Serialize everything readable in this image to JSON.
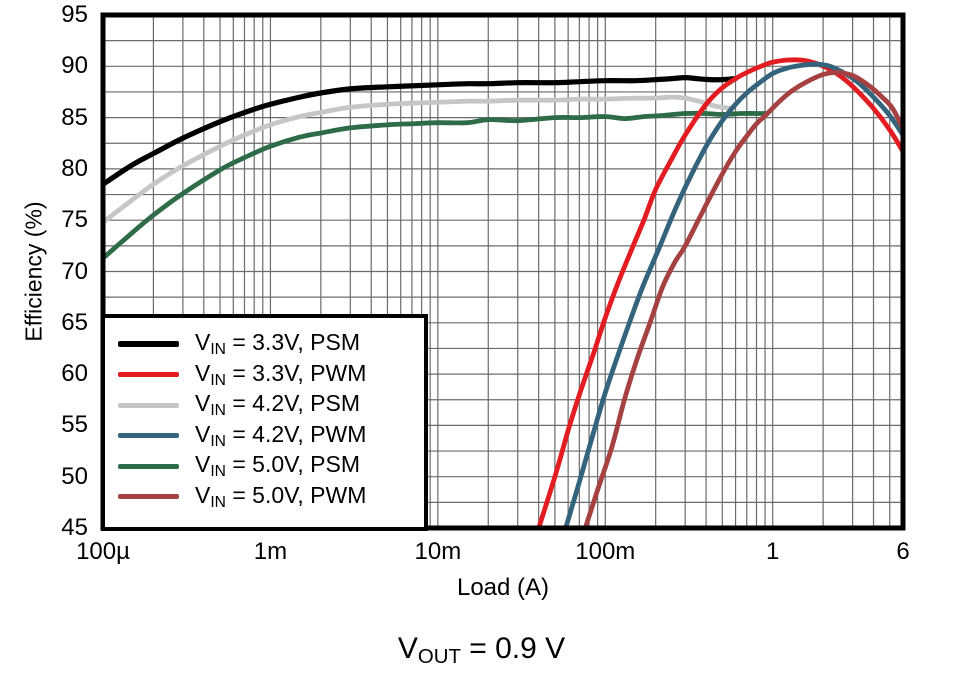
{
  "caption": {
    "v": "V",
    "sub": "OUT",
    "rest": " = 0.9 V"
  },
  "chart_data": {
    "type": "line",
    "title": "",
    "xlabel": "Load (A)",
    "ylabel": "Efficiency (%)",
    "x_scale": "log",
    "xlim": [
      0.0001,
      6
    ],
    "ylim": [
      45,
      95
    ],
    "y_major_step": 5,
    "y_minor_step": 2.5,
    "x_minor_grid": "log-decades-2-to-9",
    "grid": "major+minor",
    "grid_color": "#6b6b6b",
    "border_color": "#000000",
    "background": "#ffffff",
    "legend_position": "bottom-left",
    "x_ticks": [
      {
        "value": 0.0001,
        "label": "100µ"
      },
      {
        "value": 0.001,
        "label": "1m"
      },
      {
        "value": 0.01,
        "label": "10m"
      },
      {
        "value": 0.1,
        "label": "100m"
      },
      {
        "value": 1,
        "label": "1"
      },
      {
        "value": 6,
        "label": "6"
      }
    ],
    "y_ticks": [
      45,
      50,
      55,
      60,
      65,
      70,
      75,
      80,
      85,
      90,
      95
    ],
    "draw_order": [
      2,
      4,
      0,
      1,
      3,
      5
    ],
    "series": [
      {
        "name": "VIN = 3.3V, PSM",
        "label_parts": {
          "v": "V",
          "sub": "IN",
          "rest": " = 3.3V, PSM"
        },
        "color": "#000000",
        "width": 5.2,
        "points": [
          [
            0.0001,
            78.5
          ],
          [
            0.00015,
            80.4
          ],
          [
            0.0002,
            81.5
          ],
          [
            0.0003,
            83.0
          ],
          [
            0.0005,
            84.6
          ],
          [
            0.0007,
            85.5
          ],
          [
            0.001,
            86.3
          ],
          [
            0.0015,
            87.0
          ],
          [
            0.002,
            87.4
          ],
          [
            0.003,
            87.8
          ],
          [
            0.005,
            88.0
          ],
          [
            0.007,
            88.1
          ],
          [
            0.01,
            88.2
          ],
          [
            0.015,
            88.3
          ],
          [
            0.02,
            88.3
          ],
          [
            0.03,
            88.4
          ],
          [
            0.05,
            88.4
          ],
          [
            0.07,
            88.5
          ],
          [
            0.1,
            88.6
          ],
          [
            0.15,
            88.6
          ],
          [
            0.2,
            88.7
          ],
          [
            0.25,
            88.8
          ],
          [
            0.3,
            88.9
          ],
          [
            0.35,
            88.8
          ],
          [
            0.42,
            88.7
          ],
          [
            0.5,
            88.7
          ],
          [
            0.6,
            88.8
          ]
        ]
      },
      {
        "name": "VIN = 3.3V, PWM",
        "label_parts": {
          "v": "V",
          "sub": "IN",
          "rest": " = 3.3V, PWM"
        },
        "color": "#e21c21",
        "width": 4.8,
        "points": [
          [
            0.04,
            45
          ],
          [
            0.05,
            50
          ],
          [
            0.06,
            54.5
          ],
          [
            0.07,
            58
          ],
          [
            0.085,
            62
          ],
          [
            0.1,
            65.5
          ],
          [
            0.12,
            69
          ],
          [
            0.145,
            72.3
          ],
          [
            0.17,
            75
          ],
          [
            0.2,
            78
          ],
          [
            0.25,
            81
          ],
          [
            0.3,
            83.3
          ],
          [
            0.4,
            86.3
          ],
          [
            0.5,
            87.9
          ],
          [
            0.6,
            88.8
          ],
          [
            0.7,
            89.4
          ],
          [
            0.85,
            90.0
          ],
          [
            1.0,
            90.4
          ],
          [
            1.2,
            90.6
          ],
          [
            1.5,
            90.6
          ],
          [
            1.8,
            90.3
          ],
          [
            2.2,
            89.7
          ],
          [
            2.7,
            88.7
          ],
          [
            3.2,
            87.6
          ],
          [
            4.0,
            85.9
          ],
          [
            5.0,
            83.8
          ],
          [
            6.0,
            81.7
          ]
        ]
      },
      {
        "name": "VIN = 4.2V, PSM",
        "label_parts": {
          "v": "V",
          "sub": "IN",
          "rest": " = 4.2V, PSM"
        },
        "color": "#c5c6c7",
        "width": 4.8,
        "points": [
          [
            0.0001,
            74.8
          ],
          [
            0.00015,
            77.0
          ],
          [
            0.0002,
            78.5
          ],
          [
            0.0003,
            80.3
          ],
          [
            0.0005,
            82.2
          ],
          [
            0.0007,
            83.3
          ],
          [
            0.001,
            84.3
          ],
          [
            0.0015,
            85.1
          ],
          [
            0.002,
            85.5
          ],
          [
            0.003,
            86.0
          ],
          [
            0.005,
            86.3
          ],
          [
            0.007,
            86.4
          ],
          [
            0.01,
            86.5
          ],
          [
            0.015,
            86.6
          ],
          [
            0.02,
            86.6
          ],
          [
            0.03,
            86.7
          ],
          [
            0.05,
            86.7
          ],
          [
            0.07,
            86.8
          ],
          [
            0.1,
            86.8
          ],
          [
            0.15,
            86.9
          ],
          [
            0.2,
            86.9
          ],
          [
            0.25,
            87.0
          ],
          [
            0.3,
            86.9
          ],
          [
            0.38,
            86.5
          ],
          [
            0.46,
            86.1
          ],
          [
            0.56,
            85.9
          ]
        ]
      },
      {
        "name": "VIN = 4.2V, PWM",
        "label_parts": {
          "v": "V",
          "sub": "IN",
          "rest": " = 4.2V, PWM"
        },
        "color": "#33647b",
        "width": 4.8,
        "points": [
          [
            0.058,
            45
          ],
          [
            0.07,
            49.5
          ],
          [
            0.085,
            54.3
          ],
          [
            0.1,
            58.2
          ],
          [
            0.12,
            62
          ],
          [
            0.145,
            65.8
          ],
          [
            0.17,
            68.8
          ],
          [
            0.21,
            72.3
          ],
          [
            0.25,
            75.3
          ],
          [
            0.3,
            78.2
          ],
          [
            0.4,
            82.2
          ],
          [
            0.5,
            84.7
          ],
          [
            0.6,
            86.3
          ],
          [
            0.7,
            87.4
          ],
          [
            0.85,
            88.5
          ],
          [
            1.0,
            89.3
          ],
          [
            1.2,
            89.8
          ],
          [
            1.5,
            90.1
          ],
          [
            1.8,
            90.2
          ],
          [
            2.2,
            90.0
          ],
          [
            2.7,
            89.3
          ],
          [
            3.2,
            88.5
          ],
          [
            4.0,
            87.0
          ],
          [
            5.0,
            85.2
          ],
          [
            6.0,
            83.3
          ]
        ]
      },
      {
        "name": "VIN = 5.0V, PSM",
        "label_parts": {
          "v": "V",
          "sub": "IN",
          "rest": " = 5.0V, PSM"
        },
        "color": "#2d6c47",
        "width": 4.8,
        "points": [
          [
            0.0001,
            71.3
          ],
          [
            0.00015,
            73.8
          ],
          [
            0.0002,
            75.5
          ],
          [
            0.0003,
            77.6
          ],
          [
            0.0005,
            79.9
          ],
          [
            0.0007,
            81.1
          ],
          [
            0.001,
            82.2
          ],
          [
            0.0015,
            83.1
          ],
          [
            0.002,
            83.5
          ],
          [
            0.003,
            84.0
          ],
          [
            0.005,
            84.3
          ],
          [
            0.007,
            84.4
          ],
          [
            0.01,
            84.5
          ],
          [
            0.015,
            84.5
          ],
          [
            0.02,
            84.8
          ],
          [
            0.03,
            84.7
          ],
          [
            0.05,
            85.0
          ],
          [
            0.07,
            85.0
          ],
          [
            0.1,
            85.1
          ],
          [
            0.13,
            84.9
          ],
          [
            0.17,
            85.1
          ],
          [
            0.22,
            85.2
          ],
          [
            0.3,
            85.4
          ],
          [
            0.4,
            85.4
          ],
          [
            0.5,
            85.3
          ],
          [
            0.65,
            85.4
          ],
          [
            0.8,
            85.4
          ],
          [
            0.93,
            85.4
          ]
        ]
      },
      {
        "name": "VIN = 5.0V, PWM",
        "label_parts": {
          "v": "V",
          "sub": "IN",
          "rest": " = 5.0V, PWM"
        },
        "color": "#a64142",
        "width": 4.8,
        "points": [
          [
            0.076,
            45
          ],
          [
            0.09,
            48.7
          ],
          [
            0.11,
            53
          ],
          [
            0.13,
            57.5
          ],
          [
            0.155,
            61.5
          ],
          [
            0.185,
            65
          ],
          [
            0.22,
            68.5
          ],
          [
            0.26,
            70.9
          ],
          [
            0.3,
            72.5
          ],
          [
            0.4,
            76.5
          ],
          [
            0.5,
            79.5
          ],
          [
            0.6,
            81.7
          ],
          [
            0.7,
            83.2
          ],
          [
            0.8,
            84.4
          ],
          [
            0.93,
            85.4
          ],
          [
            1.1,
            86.6
          ],
          [
            1.3,
            87.6
          ],
          [
            1.6,
            88.5
          ],
          [
            2.0,
            89.2
          ],
          [
            2.4,
            89.4
          ],
          [
            3.0,
            89.1
          ],
          [
            3.7,
            88.2
          ],
          [
            4.5,
            87.0
          ],
          [
            5.2,
            85.9
          ],
          [
            6.0,
            83.9
          ]
        ]
      }
    ]
  }
}
